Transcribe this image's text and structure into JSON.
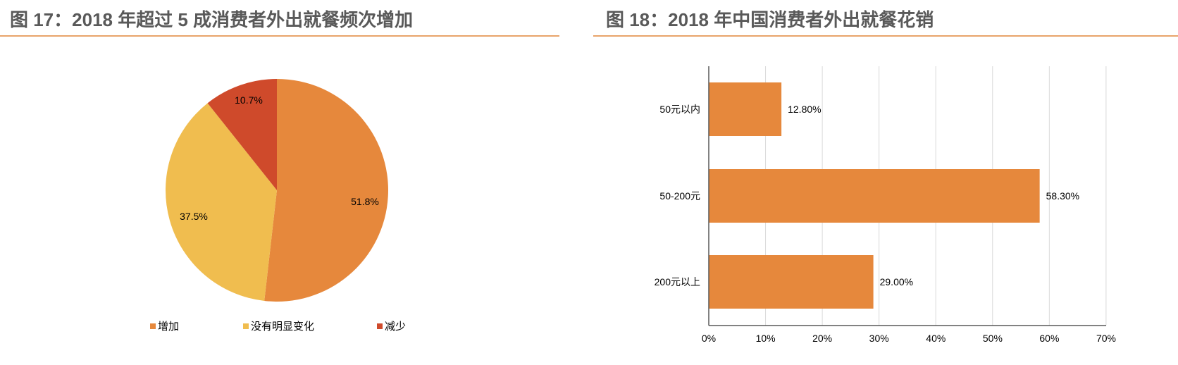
{
  "figure17": {
    "title": "图 17：2018 年超过 5 成消费者外出就餐频次增加",
    "legend": [
      {
        "label": "增加",
        "color": "#e6883c"
      },
      {
        "label": "没有明显变化",
        "color": "#f0bd4f"
      },
      {
        "label": "减少",
        "color": "#cf4a2b"
      }
    ],
    "labels": [
      "51.8%",
      "37.5%",
      "10.7%"
    ]
  },
  "figure18": {
    "title": "图 18：2018 年中国消费者外出就餐花销",
    "categories": [
      "50元以内",
      "50-200元",
      "200元以上"
    ],
    "value_labels": [
      "12.80%",
      "58.30%",
      "29.00%"
    ],
    "x_ticks": [
      "0%",
      "10%",
      "20%",
      "30%",
      "40%",
      "50%",
      "60%",
      "70%"
    ],
    "bar_color": "#e6883c"
  },
  "colors": {
    "title_text": "#595959",
    "title_rule": "#e8a46a",
    "grid": "#d9d9d9",
    "axis": "#595959"
  },
  "chart_data": [
    {
      "type": "pie",
      "title": "图 17：2018 年超过 5 成消费者外出就餐频次增加",
      "categories": [
        "增加",
        "没有明显变化",
        "减少"
      ],
      "values": [
        51.8,
        37.5,
        10.7
      ],
      "colors": [
        "#e6883c",
        "#f0bd4f",
        "#cf4a2b"
      ],
      "legend_position": "bottom",
      "data_labels": [
        "51.8%",
        "37.5%",
        "10.7%"
      ]
    },
    {
      "type": "bar",
      "orientation": "horizontal",
      "title": "图 18：2018 年中国消费者外出就餐花销",
      "categories": [
        "50元以内",
        "50-200元",
        "200元以上"
      ],
      "values": [
        12.8,
        58.3,
        29.0
      ],
      "data_labels": [
        "12.80%",
        "58.30%",
        "29.00%"
      ],
      "xlabel": "",
      "ylabel": "",
      "xlim": [
        0,
        70
      ],
      "x_ticks": [
        "0%",
        "10%",
        "20%",
        "30%",
        "40%",
        "50%",
        "60%",
        "70%"
      ],
      "grid": true,
      "legend": false,
      "color": "#e6883c"
    }
  ]
}
